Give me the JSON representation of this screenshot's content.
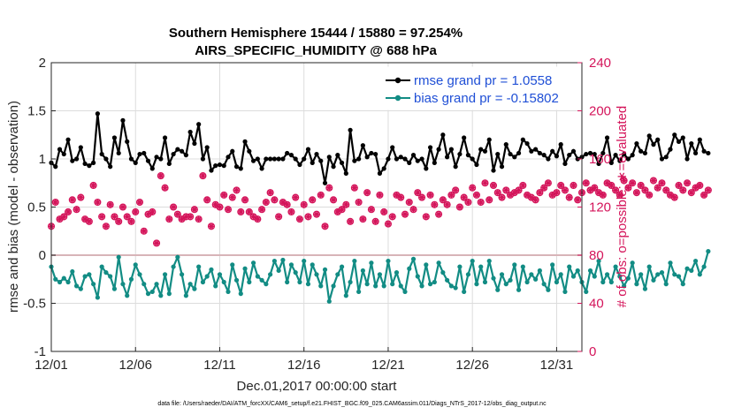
{
  "chart_data": {
    "type": "line",
    "title": "Southern Hemisphere 15444 / 15880 = 97.254%",
    "subtitle": "AIRS_SPECIFIC_HUMIDITY @ 688 hPa",
    "xlabel": "Dec.01,2017 00:00:00 start",
    "ylabel": "rmse and bias (model - observation)",
    "y2label": "# of obs: o=possible; ∗=evaluated",
    "footnote": "data file: /Users/raeder/DAI/ATM_forcXX/CAM6_setup/f.e21.FHIST_BGC.f09_025.CAM6assim.011/Diags_NTrS_2017-12/obs_diag_output.nc",
    "xlim": [
      0,
      31.5
    ],
    "ylim": [
      -1,
      2
    ],
    "y2lim": [
      0,
      240
    ],
    "grid": true,
    "legend_position": "top-right",
    "x_ticks": [
      {
        "x": 0,
        "label": "12/01"
      },
      {
        "x": 5,
        "label": "12/06"
      },
      {
        "x": 10,
        "label": "12/11"
      },
      {
        "x": 15,
        "label": "12/16"
      },
      {
        "x": 20,
        "label": "12/21"
      },
      {
        "x": 25,
        "label": "12/26"
      },
      {
        "x": 30,
        "label": "12/31"
      }
    ],
    "y_ticks": [
      {
        "y": -1,
        "label": "-1"
      },
      {
        "y": -0.5,
        "label": "-0.5"
      },
      {
        "y": 0,
        "label": "0"
      },
      {
        "y": 0.5,
        "label": "0.5"
      },
      {
        "y": 1,
        "label": "1"
      },
      {
        "y": 1.5,
        "label": "1.5"
      },
      {
        "y": 2,
        "label": "2"
      }
    ],
    "y2_ticks": [
      {
        "y": 0,
        "label": "0"
      },
      {
        "y": 40,
        "label": "40"
      },
      {
        "y": 80,
        "label": "80"
      },
      {
        "y": 120,
        "label": "120"
      },
      {
        "y": 160,
        "label": "160"
      },
      {
        "y": 200,
        "label": "200"
      },
      {
        "y": 240,
        "label": "240"
      }
    ],
    "x_step": 0.25,
    "zero_line": 0,
    "series": [
      {
        "name": "rmse grand pr = 1.0558",
        "color": "#000000",
        "marker": "filled-dot",
        "values": [
          0.96,
          0.92,
          1.1,
          1.05,
          1.2,
          0.98,
          1.0,
          1.12,
          0.95,
          0.93,
          0.96,
          1.47,
          1.05,
          1.0,
          0.92,
          1.22,
          1.06,
          1.4,
          1.18,
          1.0,
          0.96,
          1.05,
          1.06,
          0.98,
          0.9,
          1.02,
          1.0,
          1.22,
          0.95,
          1.05,
          1.1,
          1.08,
          1.04,
          1.28,
          1.16,
          1.36,
          1.0,
          1.12,
          0.88,
          0.93,
          0.94,
          0.93,
          1.02,
          1.08,
          0.92,
          0.9,
          1.18,
          1.08,
          0.98,
          1.0,
          0.9,
          1.0,
          1.0,
          1.0,
          1.0,
          1.0,
          1.06,
          1.04,
          1.0,
          0.94,
          1.0,
          1.1,
          0.96,
          1.05,
          0.98,
          0.75,
          1.02,
          0.92,
          1.04,
          0.96,
          0.85,
          1.3,
          0.98,
          1.0,
          1.14,
          1.02,
          1.06,
          1.05,
          0.85,
          0.9,
          1.0,
          1.12,
          1.0,
          1.02,
          1.0,
          0.96,
          1.04,
          0.98,
          1.0,
          0.9,
          1.12,
          0.96,
          1.1,
          1.25,
          1.02,
          1.1,
          0.92,
          1.05,
          1.22,
          1.04,
          1.0,
          0.94,
          1.1,
          1.08,
          1.2,
          0.88,
          1.05,
          0.92,
          1.15,
          1.05,
          1.02,
          1.06,
          1.2,
          1.16,
          1.08,
          1.1,
          1.06,
          1.04,
          1.0,
          1.08,
          1.03,
          1.15,
          0.95,
          1.04,
          1.08,
          1.0,
          1.02,
          1.05,
          1.06,
          1.05,
          0.95,
          1.06,
          1.22,
          0.96,
          1.04,
          0.98,
          1.05,
          1.0,
          1.04,
          1.16,
          1.08,
          1.06,
          1.24,
          1.15,
          1.2,
          1.0,
          1.02,
          1.1,
          1.25,
          1.18,
          1.22,
          1.0,
          1.16,
          1.06,
          1.2,
          1.08,
          1.06
        ]
      },
      {
        "name": "bias grand pr = -0.15802",
        "color": "#128c84",
        "marker": "filled-dot",
        "values": [
          -0.12,
          -0.25,
          -0.28,
          -0.24,
          -0.28,
          -0.17,
          -0.32,
          -0.35,
          -0.22,
          -0.2,
          -0.3,
          -0.44,
          -0.12,
          -0.18,
          -0.22,
          -0.35,
          -0.02,
          -0.3,
          -0.42,
          -0.25,
          -0.1,
          -0.2,
          -0.3,
          -0.4,
          -0.38,
          -0.3,
          -0.42,
          -0.2,
          -0.4,
          -0.12,
          -0.02,
          -0.2,
          -0.42,
          -0.3,
          -0.35,
          -0.12,
          -0.28,
          -0.22,
          -0.15,
          -0.32,
          -0.2,
          -0.28,
          -0.38,
          -0.1,
          -0.26,
          -0.4,
          -0.14,
          -0.28,
          -0.08,
          -0.22,
          -0.26,
          -0.3,
          -0.2,
          -0.06,
          -0.16,
          -0.05,
          -0.28,
          -0.1,
          -0.18,
          -0.28,
          -0.06,
          -0.3,
          -0.1,
          -0.2,
          -0.32,
          -0.15,
          -0.48,
          -0.32,
          -0.2,
          -0.12,
          -0.42,
          -0.28,
          -0.06,
          -0.38,
          -0.16,
          -0.3,
          -0.08,
          -0.32,
          -0.2,
          -0.32,
          -0.06,
          -0.3,
          -0.18,
          -0.32,
          -0.38,
          -0.14,
          -0.04,
          -0.22,
          -0.32,
          -0.1,
          -0.3,
          -0.28,
          -0.08,
          -0.18,
          -0.26,
          -0.32,
          -0.34,
          -0.12,
          -0.38,
          -0.2,
          -0.06,
          -0.3,
          -0.12,
          -0.28,
          -0.06,
          -0.24,
          -0.36,
          -0.2,
          -0.3,
          -0.26,
          -0.1,
          -0.36,
          -0.12,
          -0.28,
          -0.2,
          -0.25,
          -0.16,
          -0.3,
          -0.36,
          -0.1,
          -0.28,
          -0.2,
          -0.38,
          -0.12,
          -0.22,
          -0.16,
          -0.28,
          -0.38,
          -0.16,
          -0.22,
          -0.06,
          -0.28,
          -0.2,
          -0.28,
          -0.12,
          -0.22,
          -0.32,
          -0.24,
          -0.08,
          -0.3,
          -0.2,
          -0.35,
          -0.12,
          -0.26,
          -0.2,
          -0.18,
          -0.3,
          -0.08,
          -0.2,
          -0.22,
          -0.3,
          -0.14,
          -0.16,
          -0.06,
          -0.2,
          -0.12,
          0.04
        ]
      }
    ],
    "obs_possible": {
      "name": "possible",
      "color": "#d4145a",
      "marker": "circle",
      "values": [
        104,
        124,
        110,
        112,
        116,
        126,
        118,
        128,
        110,
        108,
        138,
        124,
        112,
        104,
        122,
        112,
        108,
        120,
        112,
        108,
        116,
        124,
        100,
        114,
        116,
        90,
        146,
        136,
        110,
        120,
        114,
        110,
        112,
        112,
        118,
        110,
        146,
        126,
        104,
        122,
        120,
        130,
        118,
        128,
        134,
        116,
        126,
        116,
        112,
        110,
        118,
        124,
        132,
        126,
        112,
        124,
        122,
        116,
        128,
        110,
        122,
        112,
        126,
        114,
        130,
        104,
        136,
        126,
        116,
        118,
        122,
        108,
        136,
        124,
        110,
        132,
        118,
        108,
        130,
        116,
        106,
        112,
        130,
        128,
        114,
        124,
        118,
        132,
        128,
        112,
        130,
        122,
        114,
        126,
        122,
        130,
        134,
        120,
        128,
        124,
        136,
        130,
        124,
        140,
        126,
        138,
        132,
        128,
        134,
        130,
        132,
        134,
        138,
        130,
        128,
        126,
        132,
        136,
        140,
        130,
        132,
        138,
        134,
        128,
        138,
        126,
        132,
        140,
        134,
        136,
        132,
        130,
        140,
        138,
        134,
        130,
        142,
        136,
        140,
        132,
        138,
        134,
        130,
        142,
        136,
        140,
        134,
        130,
        128,
        138,
        134,
        140,
        132,
        136,
        138,
        130,
        134
      ]
    },
    "obs_evaluated": {
      "name": "evaluated",
      "color": "#d4145a",
      "marker": "asterisk",
      "values": [
        104,
        124,
        110,
        112,
        116,
        126,
        118,
        128,
        110,
        108,
        138,
        124,
        112,
        104,
        122,
        112,
        108,
        120,
        112,
        108,
        116,
        124,
        100,
        114,
        116,
        90,
        146,
        136,
        110,
        120,
        114,
        110,
        112,
        112,
        118,
        110,
        146,
        126,
        104,
        122,
        120,
        130,
        118,
        128,
        134,
        116,
        126,
        116,
        112,
        110,
        118,
        124,
        132,
        126,
        112,
        124,
        122,
        116,
        128,
        110,
        122,
        112,
        126,
        114,
        130,
        104,
        136,
        126,
        116,
        118,
        122,
        108,
        136,
        124,
        110,
        132,
        118,
        108,
        130,
        116,
        106,
        112,
        130,
        128,
        114,
        124,
        118,
        132,
        128,
        112,
        130,
        122,
        114,
        126,
        122,
        130,
        134,
        120,
        128,
        124,
        136,
        130,
        124,
        140,
        126,
        138,
        132,
        128,
        134,
        130,
        132,
        134,
        138,
        130,
        128,
        126,
        132,
        136,
        140,
        130,
        132,
        138,
        134,
        128,
        138,
        126,
        132,
        140,
        134,
        136,
        132,
        130,
        140,
        138,
        134,
        130,
        142,
        136,
        140,
        132,
        138,
        134,
        130,
        142,
        136,
        140,
        134,
        130,
        128,
        138,
        134,
        140,
        132,
        136,
        138,
        130,
        134
      ]
    }
  }
}
